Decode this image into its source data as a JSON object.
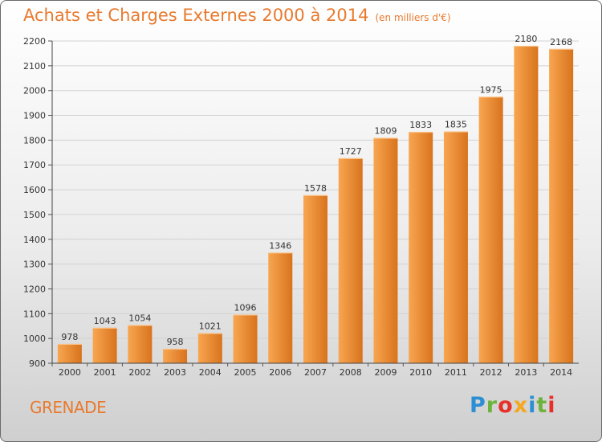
{
  "title": "Achats et Charges Externes 2000 à 2014",
  "subtitle": "(en milliers d'€)",
  "city": "GRENADE",
  "logo_text": "Proxiti",
  "colors": {
    "accent": "#e87a2e",
    "bar_light": "#f8a651",
    "bar_dark": "#d9731d",
    "logo": [
      "#2d8fd3",
      "#6bb33a",
      "#e8302a",
      "#f4a81f",
      "#2d8fd3",
      "#6bb33a",
      "#e8302a"
    ]
  },
  "chart_data": {
    "type": "bar",
    "title": "Achats et Charges Externes 2000 à 2014",
    "subtitle": "(en milliers d'€)",
    "categories": [
      "2000",
      "2001",
      "2002",
      "2003",
      "2004",
      "2005",
      "2006",
      "2007",
      "2008",
      "2009",
      "2010",
      "2011",
      "2012",
      "2013",
      "2014"
    ],
    "values": [
      978,
      1043,
      1054,
      958,
      1021,
      1096,
      1346,
      1578,
      1727,
      1809,
      1833,
      1835,
      1975,
      2180,
      2168
    ],
    "data_labels": [
      "978",
      "1043",
      "1054",
      "958",
      "1021",
      "1096",
      "1346",
      "1578",
      "1727",
      "1809",
      "1833",
      "1835",
      "1975",
      "2180",
      "2168"
    ],
    "ylim": [
      900,
      2200
    ],
    "yticks": [
      900,
      1000,
      1100,
      1200,
      1300,
      1400,
      1500,
      1600,
      1700,
      1800,
      1900,
      2000,
      2100,
      2200
    ],
    "grid": true,
    "xlabel": "",
    "ylabel": ""
  }
}
